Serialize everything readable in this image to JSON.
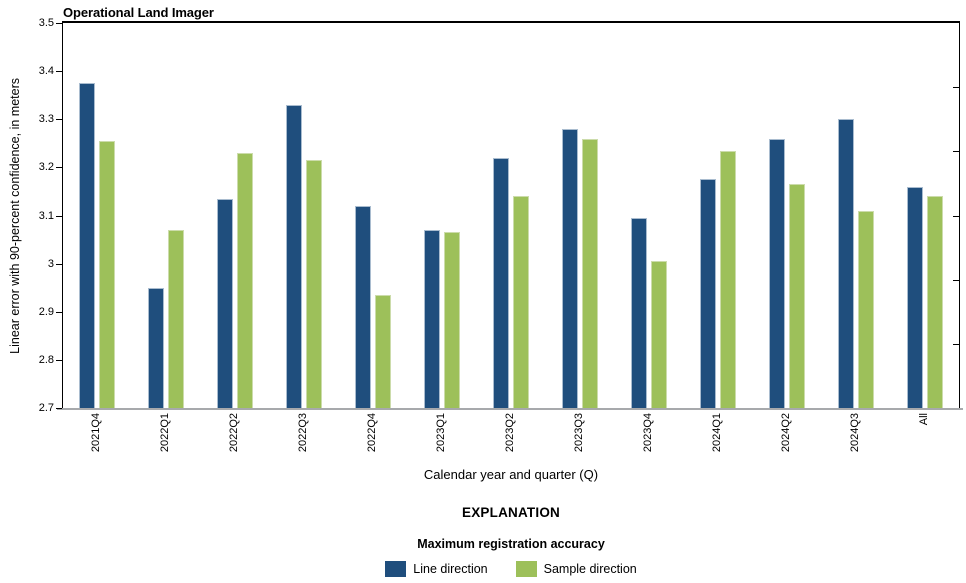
{
  "title": "Operational Land Imager",
  "chart_data": {
    "type": "bar",
    "title": "Operational Land Imager",
    "categories": [
      "2021Q4",
      "2022Q1",
      "2022Q2",
      "2022Q3",
      "2022Q4",
      "2023Q1",
      "2023Q2",
      "2023Q3",
      "2023Q4",
      "2024Q1",
      "2024Q2",
      "2024Q3",
      "All"
    ],
    "series": [
      {
        "name": "Line direction",
        "color": "#1f4e7d",
        "values": [
          3.375,
          2.95,
          3.135,
          3.33,
          3.12,
          3.07,
          3.22,
          3.28,
          3.095,
          3.175,
          3.26,
          3.3,
          3.16
        ]
      },
      {
        "name": "Sample direction",
        "color": "#9dc05a",
        "values": [
          3.255,
          3.07,
          3.23,
          3.215,
          2.935,
          3.065,
          3.14,
          3.26,
          3.005,
          3.235,
          3.165,
          3.11,
          3.14
        ]
      }
    ],
    "xlabel": "Calendar year and quarter (Q)",
    "ylabel": "Linear error with 90-percent confidence, in meters",
    "ylim": [
      2.7,
      3.5
    ],
    "ytick_labels": [
      "3.5",
      "3.4",
      "3.3",
      "3.2",
      "3.1",
      "3",
      "2.9",
      "2.8",
      "2.7"
    ],
    "ytick_values": [
      3.5,
      3.4,
      3.3,
      3.2,
      3.1,
      3.0,
      2.9,
      2.8,
      2.7
    ],
    "right_axis_minor_tick_count": 5,
    "grid": false,
    "legend_position": "bottom"
  },
  "explanation": {
    "heading": "EXPLANATION",
    "subheading": "Maximum registration accuracy",
    "items": [
      {
        "label": "Line direction",
        "color": "#1f4e7d"
      },
      {
        "label": "Sample direction",
        "color": "#9dc05a"
      }
    ]
  }
}
